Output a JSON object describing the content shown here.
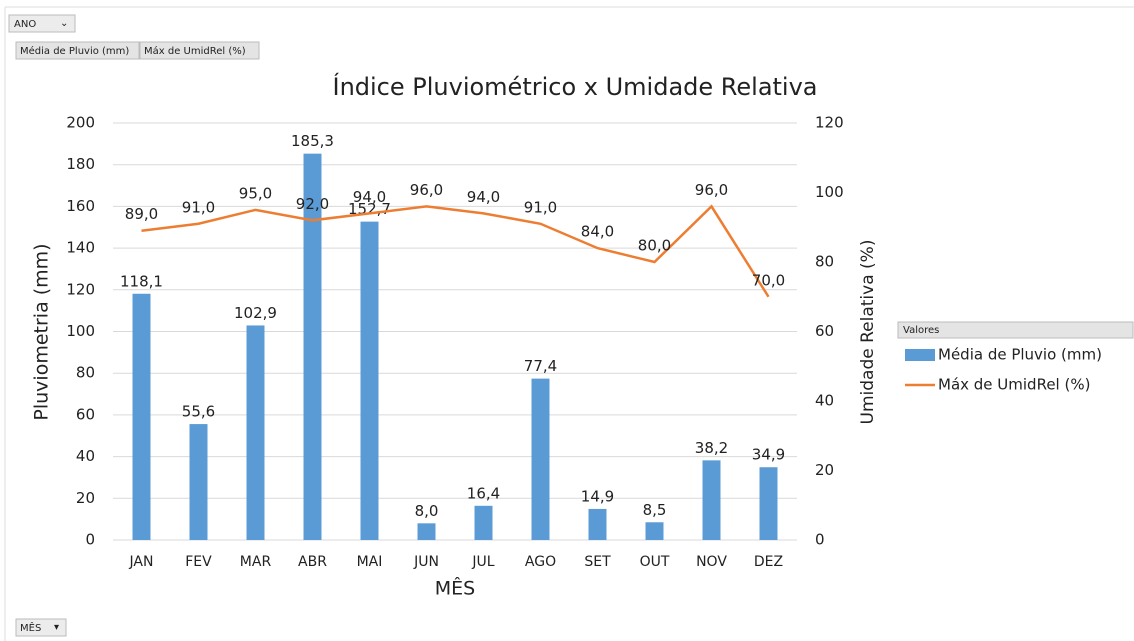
{
  "ui": {
    "filter_button": "ANO",
    "value_buttons": [
      "Média de Pluvio (mm)",
      "Máx de UmidRel (%)"
    ],
    "axis_button": "MÊS",
    "legend_header": "Valores"
  },
  "chart_data": {
    "type": "bar_line",
    "title": "Índice Pluviométrico x Umidade Relativa",
    "x_label": "MÊS",
    "y_label": "Pluviometria (mm)",
    "y2_label": "Umidade Relativa (%)",
    "categories": [
      "JAN",
      "FEV",
      "MAR",
      "ABR",
      "MAI",
      "JUN",
      "JUL",
      "AGO",
      "SET",
      "OUT",
      "NOV",
      "DEZ"
    ],
    "series": [
      {
        "name": "Média de Pluvio (mm)",
        "type": "bar",
        "color": "#5b9bd5",
        "values": [
          118.1,
          55.6,
          102.9,
          185.3,
          152.7,
          8.0,
          16.4,
          77.4,
          14.9,
          8.5,
          38.2,
          34.9
        ],
        "value_labels": [
          "118,1",
          "55,6",
          "102,9",
          "185,3",
          "152,7",
          "8,0",
          "16,4",
          "77,4",
          "14,9",
          "8,5",
          "38,2",
          "34,9"
        ]
      },
      {
        "name": "Máx de UmidRel (%)",
        "type": "line",
        "axis": "y2",
        "color": "#ed7d31",
        "values": [
          89,
          91,
          95,
          92,
          94,
          96,
          94,
          91,
          84,
          80,
          96,
          70
        ],
        "value_labels": [
          "89,0",
          "91,0",
          "95,0",
          "92,0",
          "94,0",
          "96,0",
          "94,0",
          "91,0",
          "84,0",
          "80,0",
          "96,0",
          "70,0"
        ]
      }
    ],
    "ylim": [
      0,
      200
    ],
    "yticks": [
      0,
      20,
      40,
      60,
      80,
      100,
      120,
      140,
      160,
      180,
      200
    ],
    "y2lim": [
      0,
      120
    ],
    "y2ticks": [
      0,
      20,
      40,
      60,
      80,
      100,
      120
    ],
    "grid": true,
    "legend": "right"
  }
}
